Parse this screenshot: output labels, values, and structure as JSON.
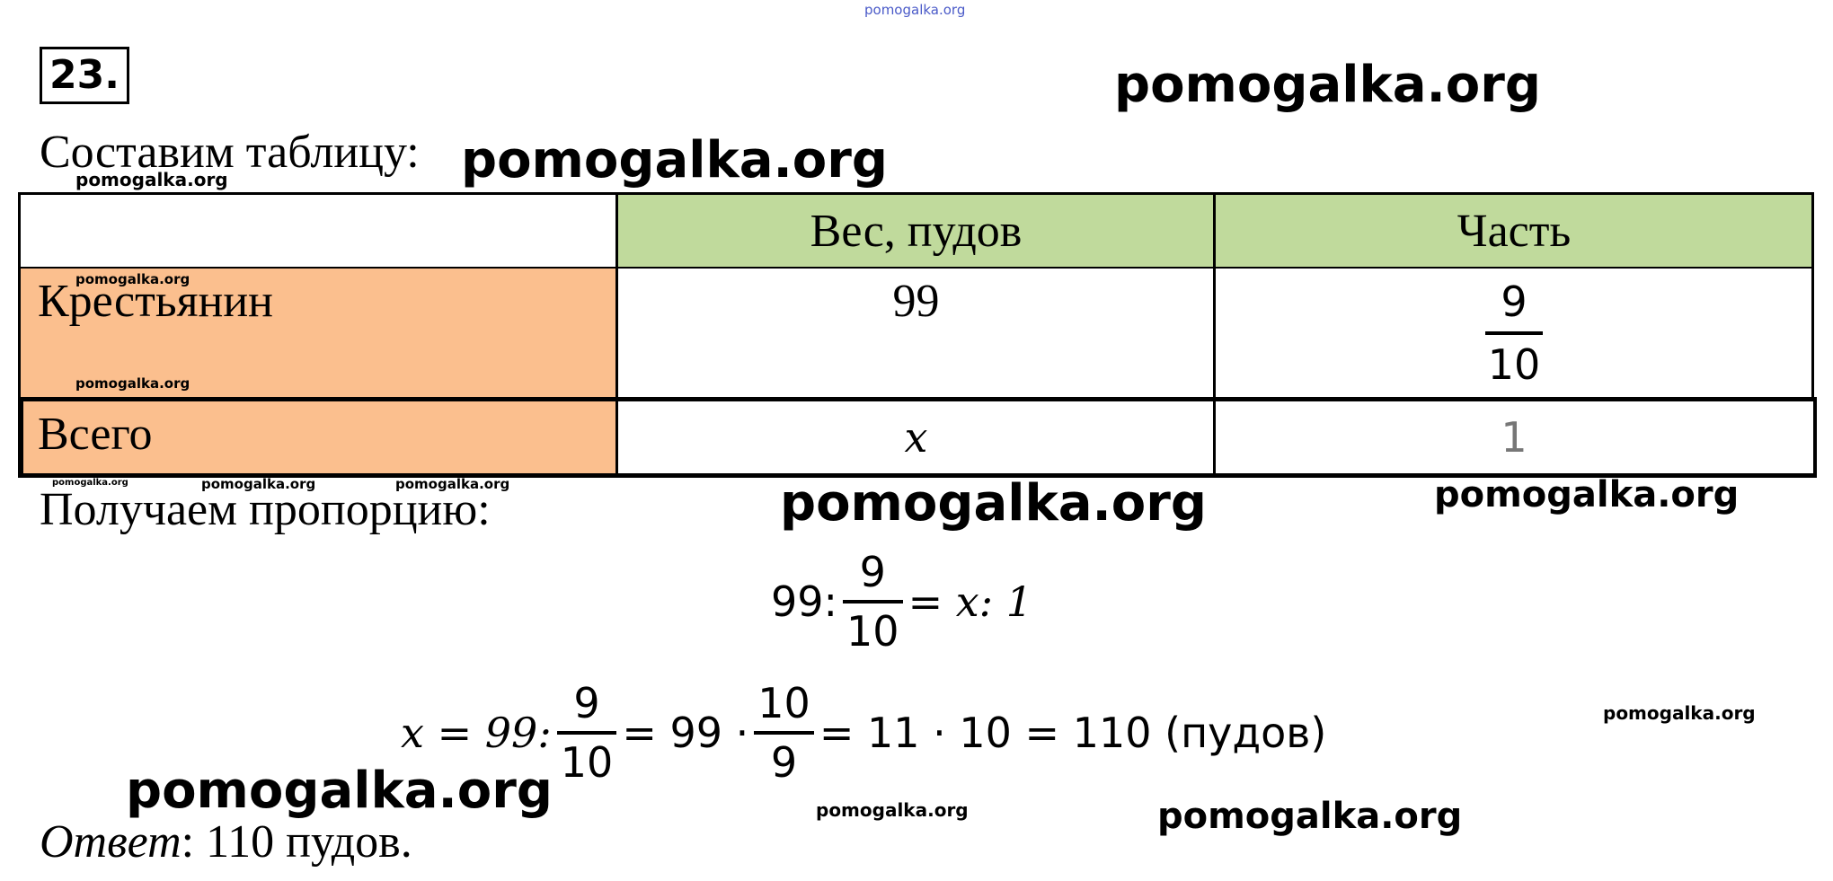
{
  "watermark": "pomogalka.org",
  "task": {
    "number": "23."
  },
  "intro": "Составим таблицу:",
  "table": {
    "headers": [
      "",
      "Вес, пудов",
      "Часть"
    ],
    "rows": [
      {
        "label": "Крестьянин",
        "weight": "99",
        "part_num": "9",
        "part_den": "10"
      },
      {
        "label": "Всего",
        "weight": "x",
        "part": "1"
      }
    ],
    "colors": {
      "header_bg": "#c0da9c",
      "label_bg": "#fbbf8e"
    }
  },
  "proportion_label": "Получаем пропорцию:",
  "eq1": {
    "a": "99:",
    "num": "9",
    "den": "10",
    "rest": "= x: 1"
  },
  "eq2": {
    "lhs": "x = 99:",
    "f1_num": "9",
    "f1_den": "10",
    "mid": "= 99 ·",
    "f2_num": "10",
    "f2_den": "9",
    "rest": "= 11 · 10 = 110 (пудов)"
  },
  "answer": {
    "label": "Ответ",
    "text": ": 110 пудов."
  }
}
